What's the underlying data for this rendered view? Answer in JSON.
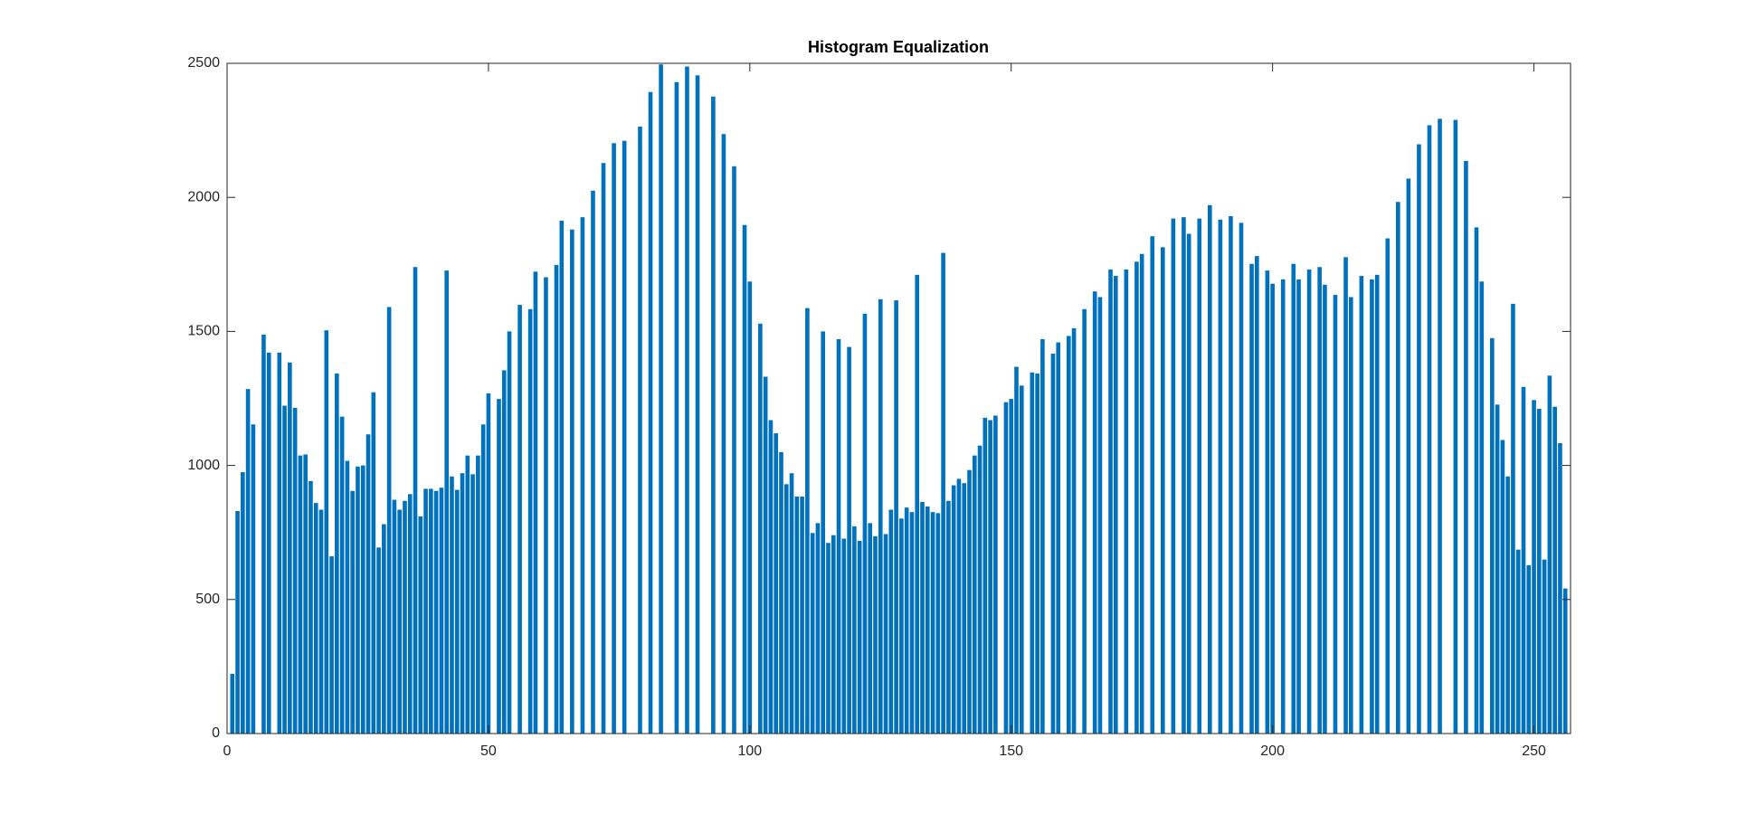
{
  "chart_data": {
    "type": "bar",
    "title": "Histogram Equalization",
    "x": [
      1,
      2,
      3,
      4,
      5,
      6,
      7,
      8,
      9,
      10,
      11,
      12,
      13,
      14,
      15,
      16,
      17,
      18,
      19,
      20,
      21,
      22,
      23,
      24,
      25,
      26,
      27,
      28,
      29,
      30,
      31,
      32,
      33,
      34,
      35,
      36,
      37,
      38,
      39,
      40,
      41,
      42,
      43,
      44,
      45,
      46,
      47,
      48,
      49,
      50,
      51,
      52,
      53,
      54,
      55,
      56,
      57,
      58,
      59,
      60,
      61,
      62,
      63,
      64,
      65,
      66,
      67,
      68,
      69,
      70,
      71,
      72,
      73,
      74,
      75,
      76,
      77,
      78,
      79,
      80,
      81,
      82,
      83,
      84,
      85,
      86,
      87,
      88,
      89,
      90,
      91,
      92,
      93,
      94,
      95,
      96,
      97,
      98,
      99,
      100,
      101,
      102,
      103,
      104,
      105,
      106,
      107,
      108,
      109,
      110,
      111,
      112,
      113,
      114,
      115,
      116,
      117,
      118,
      119,
      120,
      121,
      122,
      123,
      124,
      125,
      126,
      127,
      128,
      129,
      130,
      131,
      132,
      133,
      134,
      135,
      136,
      137,
      138,
      139,
      140,
      141,
      142,
      143,
      144,
      145,
      146,
      147,
      148,
      149,
      150,
      151,
      152,
      153,
      154,
      155,
      156,
      157,
      158,
      159,
      160,
      161,
      162,
      163,
      164,
      165,
      166,
      167,
      168,
      169,
      170,
      171,
      172,
      173,
      174,
      175,
      176,
      177,
      178,
      179,
      180,
      181,
      182,
      183,
      184,
      185,
      186,
      187,
      188,
      189,
      190,
      191,
      192,
      193,
      194,
      195,
      196,
      197,
      198,
      199,
      200,
      201,
      202,
      203,
      204,
      205,
      206,
      207,
      208,
      209,
      210,
      211,
      212,
      213,
      214,
      215,
      216,
      217,
      218,
      219,
      220,
      221,
      222,
      223,
      224,
      225,
      226,
      227,
      228,
      229,
      230,
      231,
      232,
      233,
      234,
      235,
      236,
      237,
      238,
      239,
      240,
      241,
      242,
      243,
      244,
      245,
      246,
      247,
      248,
      249,
      250,
      251,
      252,
      253,
      254,
      255,
      256
    ],
    "values": [
      223,
      830,
      975,
      1285,
      1153,
      0,
      1488,
      1421,
      0,
      1421,
      1223,
      1384,
      1215,
      1037,
      1041,
      942,
      860,
      835,
      1504,
      661,
      1343,
      1182,
      1017,
      905,
      996,
      1000,
      1116,
      1273,
      694,
      781,
      1591,
      872,
      835,
      868,
      893,
      1740,
      810,
      913,
      913,
      905,
      917,
      1727,
      959,
      909,
      971,
      1037,
      967,
      1037,
      1153,
      1269,
      0,
      1248,
      1355,
      1500,
      0,
      1599,
      0,
      1583,
      1723,
      0,
      1702,
      0,
      1748,
      1913,
      0,
      1880,
      0,
      1926,
      0,
      2025,
      0,
      2128,
      0,
      2202,
      0,
      2211,
      0,
      0,
      2264,
      0,
      2393,
      0,
      2496,
      0,
      0,
      2430,
      0,
      2488,
      0,
      2455,
      0,
      0,
      2376,
      0,
      2236,
      0,
      2116,
      0,
      1897,
      1686,
      0,
      1529,
      1331,
      1169,
      1120,
      1050,
      930,
      971,
      884,
      884,
      1587,
      748,
      785,
      1500,
      711,
      740,
      1471,
      727,
      1442,
      773,
      719,
      1566,
      785,
      736,
      1620,
      744,
      835,
      1616,
      802,
      843,
      826,
      1711,
      864,
      847,
      826,
      822,
      1793,
      868,
      926,
      950,
      934,
      983,
      1037,
      1074,
      1178,
      1169,
      1186,
      0,
      1236,
      1248,
      1368,
      1298,
      0,
      1347,
      1343,
      1471,
      0,
      1417,
      1459,
      0,
      1483,
      1512,
      0,
      1583,
      0,
      1649,
      1628,
      0,
      1731,
      1707,
      0,
      1731,
      0,
      1760,
      1789,
      0,
      1855,
      0,
      1814,
      0,
      1921,
      0,
      1926,
      1864,
      0,
      1921,
      0,
      1971,
      0,
      1917,
      0,
      1930,
      0,
      1905,
      0,
      1752,
      1781,
      0,
      1727,
      1678,
      0,
      1694,
      0,
      1752,
      1694,
      0,
      1731,
      0,
      1740,
      1674,
      0,
      1636,
      0,
      1777,
      1628,
      0,
      1707,
      0,
      1694,
      1711,
      0,
      1847,
      0,
      1983,
      0,
      2070,
      0,
      2198,
      0,
      2269,
      0,
      2293,
      0,
      0,
      2289,
      0,
      2136,
      0,
      1888,
      1686,
      0,
      1475,
      1227,
      1095,
      959,
      1603,
      686,
      1293,
      628,
      1244,
      1211,
      649,
      1335,
      1219,
      1083,
      541
    ],
    "color": "#0072bd",
    "xlim": [
      0,
      257
    ],
    "xticks": [
      0,
      50,
      100,
      150,
      200,
      250
    ],
    "ylim": [
      0,
      2500
    ],
    "yticks": [
      0,
      500,
      1000,
      1500,
      2000,
      2500
    ],
    "grid": false
  }
}
